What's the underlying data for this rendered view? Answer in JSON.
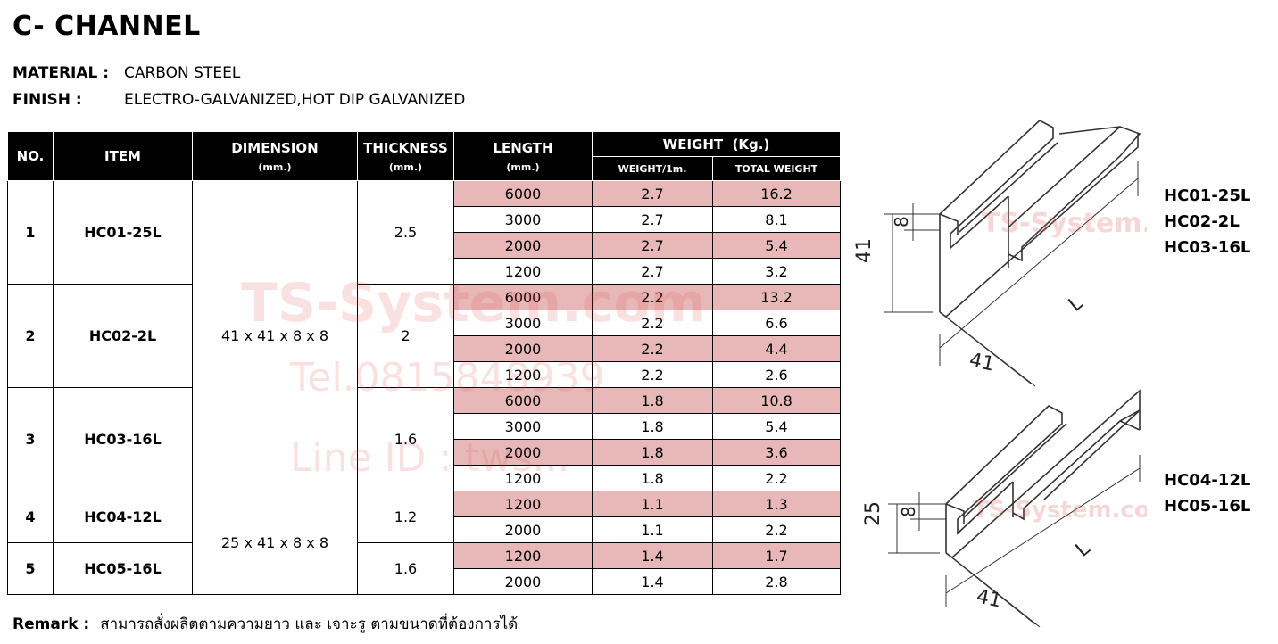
{
  "title": "C- CHANNEL",
  "material": {
    "label": "MATERIAL :",
    "value": "CARBON STEEL"
  },
  "finish": {
    "label": "FINISH :",
    "value": "ELECTRO-GALVANIZED,HOT DIP GALVANIZED"
  },
  "table": {
    "headers": {
      "no": "NO.",
      "item": "ITEM",
      "dimension": "DIMENSION",
      "dimension_unit": "(mm.)",
      "thickness": "THICKNESS",
      "thickness_unit": "(mm.)",
      "length": "LENGTH",
      "length_unit": "(mm.)",
      "weight": "WEIGHT  (Kg.)",
      "weight_per_m": "WEIGHT/1m.",
      "total_weight": "TOTAL WEIGHT"
    },
    "groups": [
      {
        "no": "1",
        "item": "HC01-25L",
        "thickness": "2.5",
        "rows": [
          [
            "6000",
            "2.7",
            "16.2"
          ],
          [
            "3000",
            "2.7",
            "8.1"
          ],
          [
            "2000",
            "2.7",
            "5.4"
          ],
          [
            "1200",
            "2.7",
            "3.2"
          ]
        ]
      },
      {
        "no": "2",
        "item": "HC02-2L",
        "thickness": "2",
        "rows": [
          [
            "6000",
            "2.2",
            "13.2"
          ],
          [
            "3000",
            "2.2",
            "6.6"
          ],
          [
            "2000",
            "2.2",
            "4.4"
          ],
          [
            "1200",
            "2.2",
            "2.6"
          ]
        ]
      },
      {
        "no": "3",
        "item": "HC03-16L",
        "thickness": "1.6",
        "rows": [
          [
            "6000",
            "1.8",
            "10.8"
          ],
          [
            "3000",
            "1.8",
            "5.4"
          ],
          [
            "2000",
            "1.8",
            "3.6"
          ],
          [
            "1200",
            "1.8",
            "2.2"
          ]
        ]
      },
      {
        "no": "4",
        "item": "HC04-12L",
        "thickness": "1.2",
        "rows": [
          [
            "1200",
            "1.1",
            "1.3"
          ],
          [
            "2000",
            "1.1",
            "2.2"
          ]
        ]
      },
      {
        "no": "5",
        "item": "HC05-16L",
        "thickness": "1.6",
        "rows": [
          [
            "1200",
            "1.4",
            "1.7"
          ],
          [
            "2000",
            "1.4",
            "2.8"
          ]
        ]
      }
    ],
    "dimension_a": "41 x 41 x 8 x 8",
    "dimension_b": "25 x 41 x 8 x 8"
  },
  "watermark": {
    "line1": "TS-System.com",
    "line2": "Tel.0815848939",
    "line3": "Line ID : tws..."
  },
  "drawing": {
    "top_codes": [
      "HC01-25L",
      "HC02-2L",
      "HC03-16L"
    ],
    "bottom_codes": [
      "HC04-12L",
      "HC05-16L"
    ],
    "top_dims": {
      "height": "41",
      "lip": "8",
      "width": "41",
      "length": "L"
    },
    "bottom_dims": {
      "height": "25",
      "lip": "8",
      "width": "41",
      "length": "L"
    },
    "watermark": "TS-System.com"
  },
  "remark": {
    "label": "Remark :",
    "value": "สามารถสั่งผลิตตามความยาว และ เจาะรู ตามขนาดที่ต้องการได้"
  },
  "colors": {
    "highlight_row": "#e8b7b7",
    "header_bg": "#000000"
  }
}
